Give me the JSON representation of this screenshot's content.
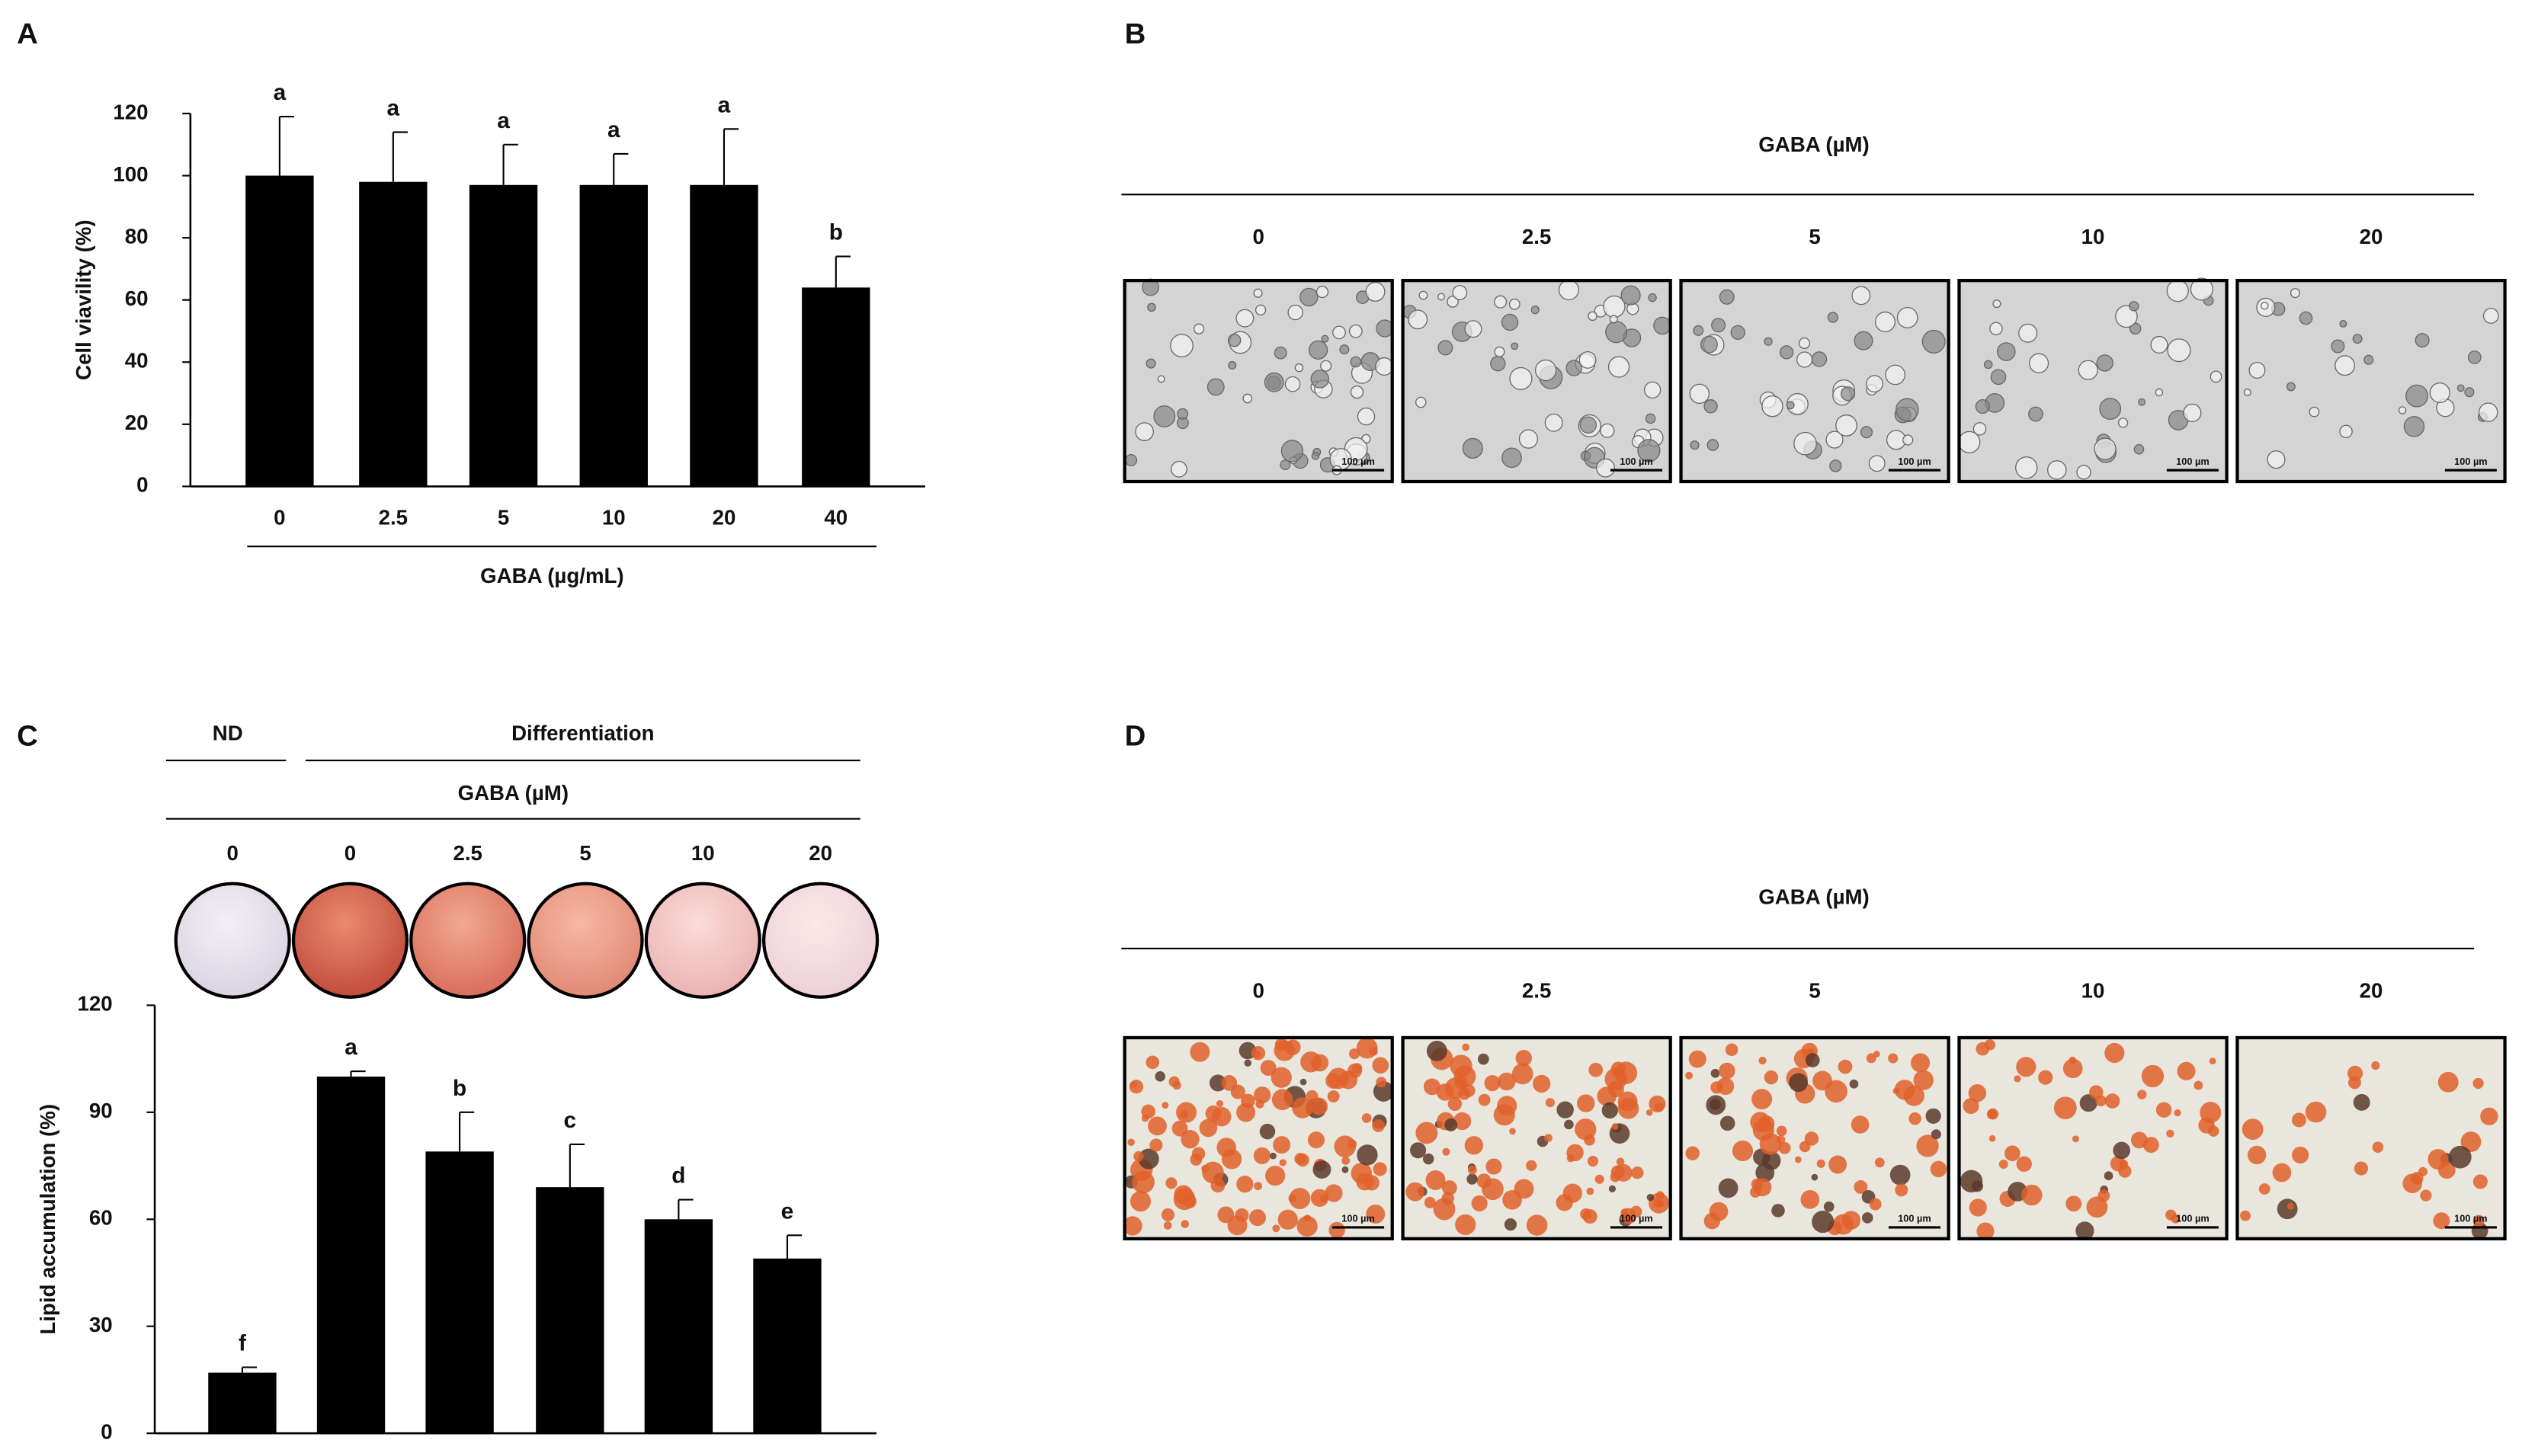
{
  "chart_data": [
    {
      "type": "bar",
      "panel_label": "A",
      "ylabel": "Cell viavility (%)",
      "xlabel": "GABA (µg/mL)",
      "categories": [
        "0",
        "2.5",
        "5",
        "10",
        "20",
        "40"
      ],
      "values": [
        100,
        98,
        97,
        97,
        97,
        64
      ],
      "errors": [
        19,
        16,
        13,
        10,
        18,
        10
      ],
      "annotations": [
        "a",
        "a",
        "a",
        "a",
        "a",
        "b"
      ],
      "color": "#000000",
      "ylim": [
        0,
        120
      ],
      "yticks": [
        0,
        20,
        40,
        60,
        80,
        100,
        120
      ]
    },
    {
      "type": "bar",
      "panel_label": "C",
      "ylabel": "Lipid accumulation (%)",
      "group_labels": [
        "ND",
        "Differentiation",
        "GABA (µM)"
      ],
      "categories": [
        "0",
        "0",
        "2.5",
        "5",
        "10",
        "20"
      ],
      "values": [
        17,
        100,
        79,
        69,
        60,
        49
      ],
      "errors": [
        1.5,
        1.5,
        11,
        12,
        5.5,
        6.5
      ],
      "annotations": [
        "f",
        "a",
        "b",
        "c",
        "d",
        "e"
      ],
      "color": "#000000",
      "ylim": [
        0,
        120
      ],
      "yticks": [
        0,
        30,
        60,
        90,
        120
      ]
    }
  ],
  "panels": [
    {
      "label": "B",
      "title": "GABA (µM)",
      "columns": [
        "0",
        "2.5",
        "5",
        "10",
        "20"
      ],
      "scale_bar": "100 µm"
    },
    {
      "label": "D",
      "title": "GABA (µM)",
      "columns": [
        "0",
        "2.5",
        "5",
        "10",
        "20"
      ],
      "scale_bar": "100 µm"
    }
  ]
}
